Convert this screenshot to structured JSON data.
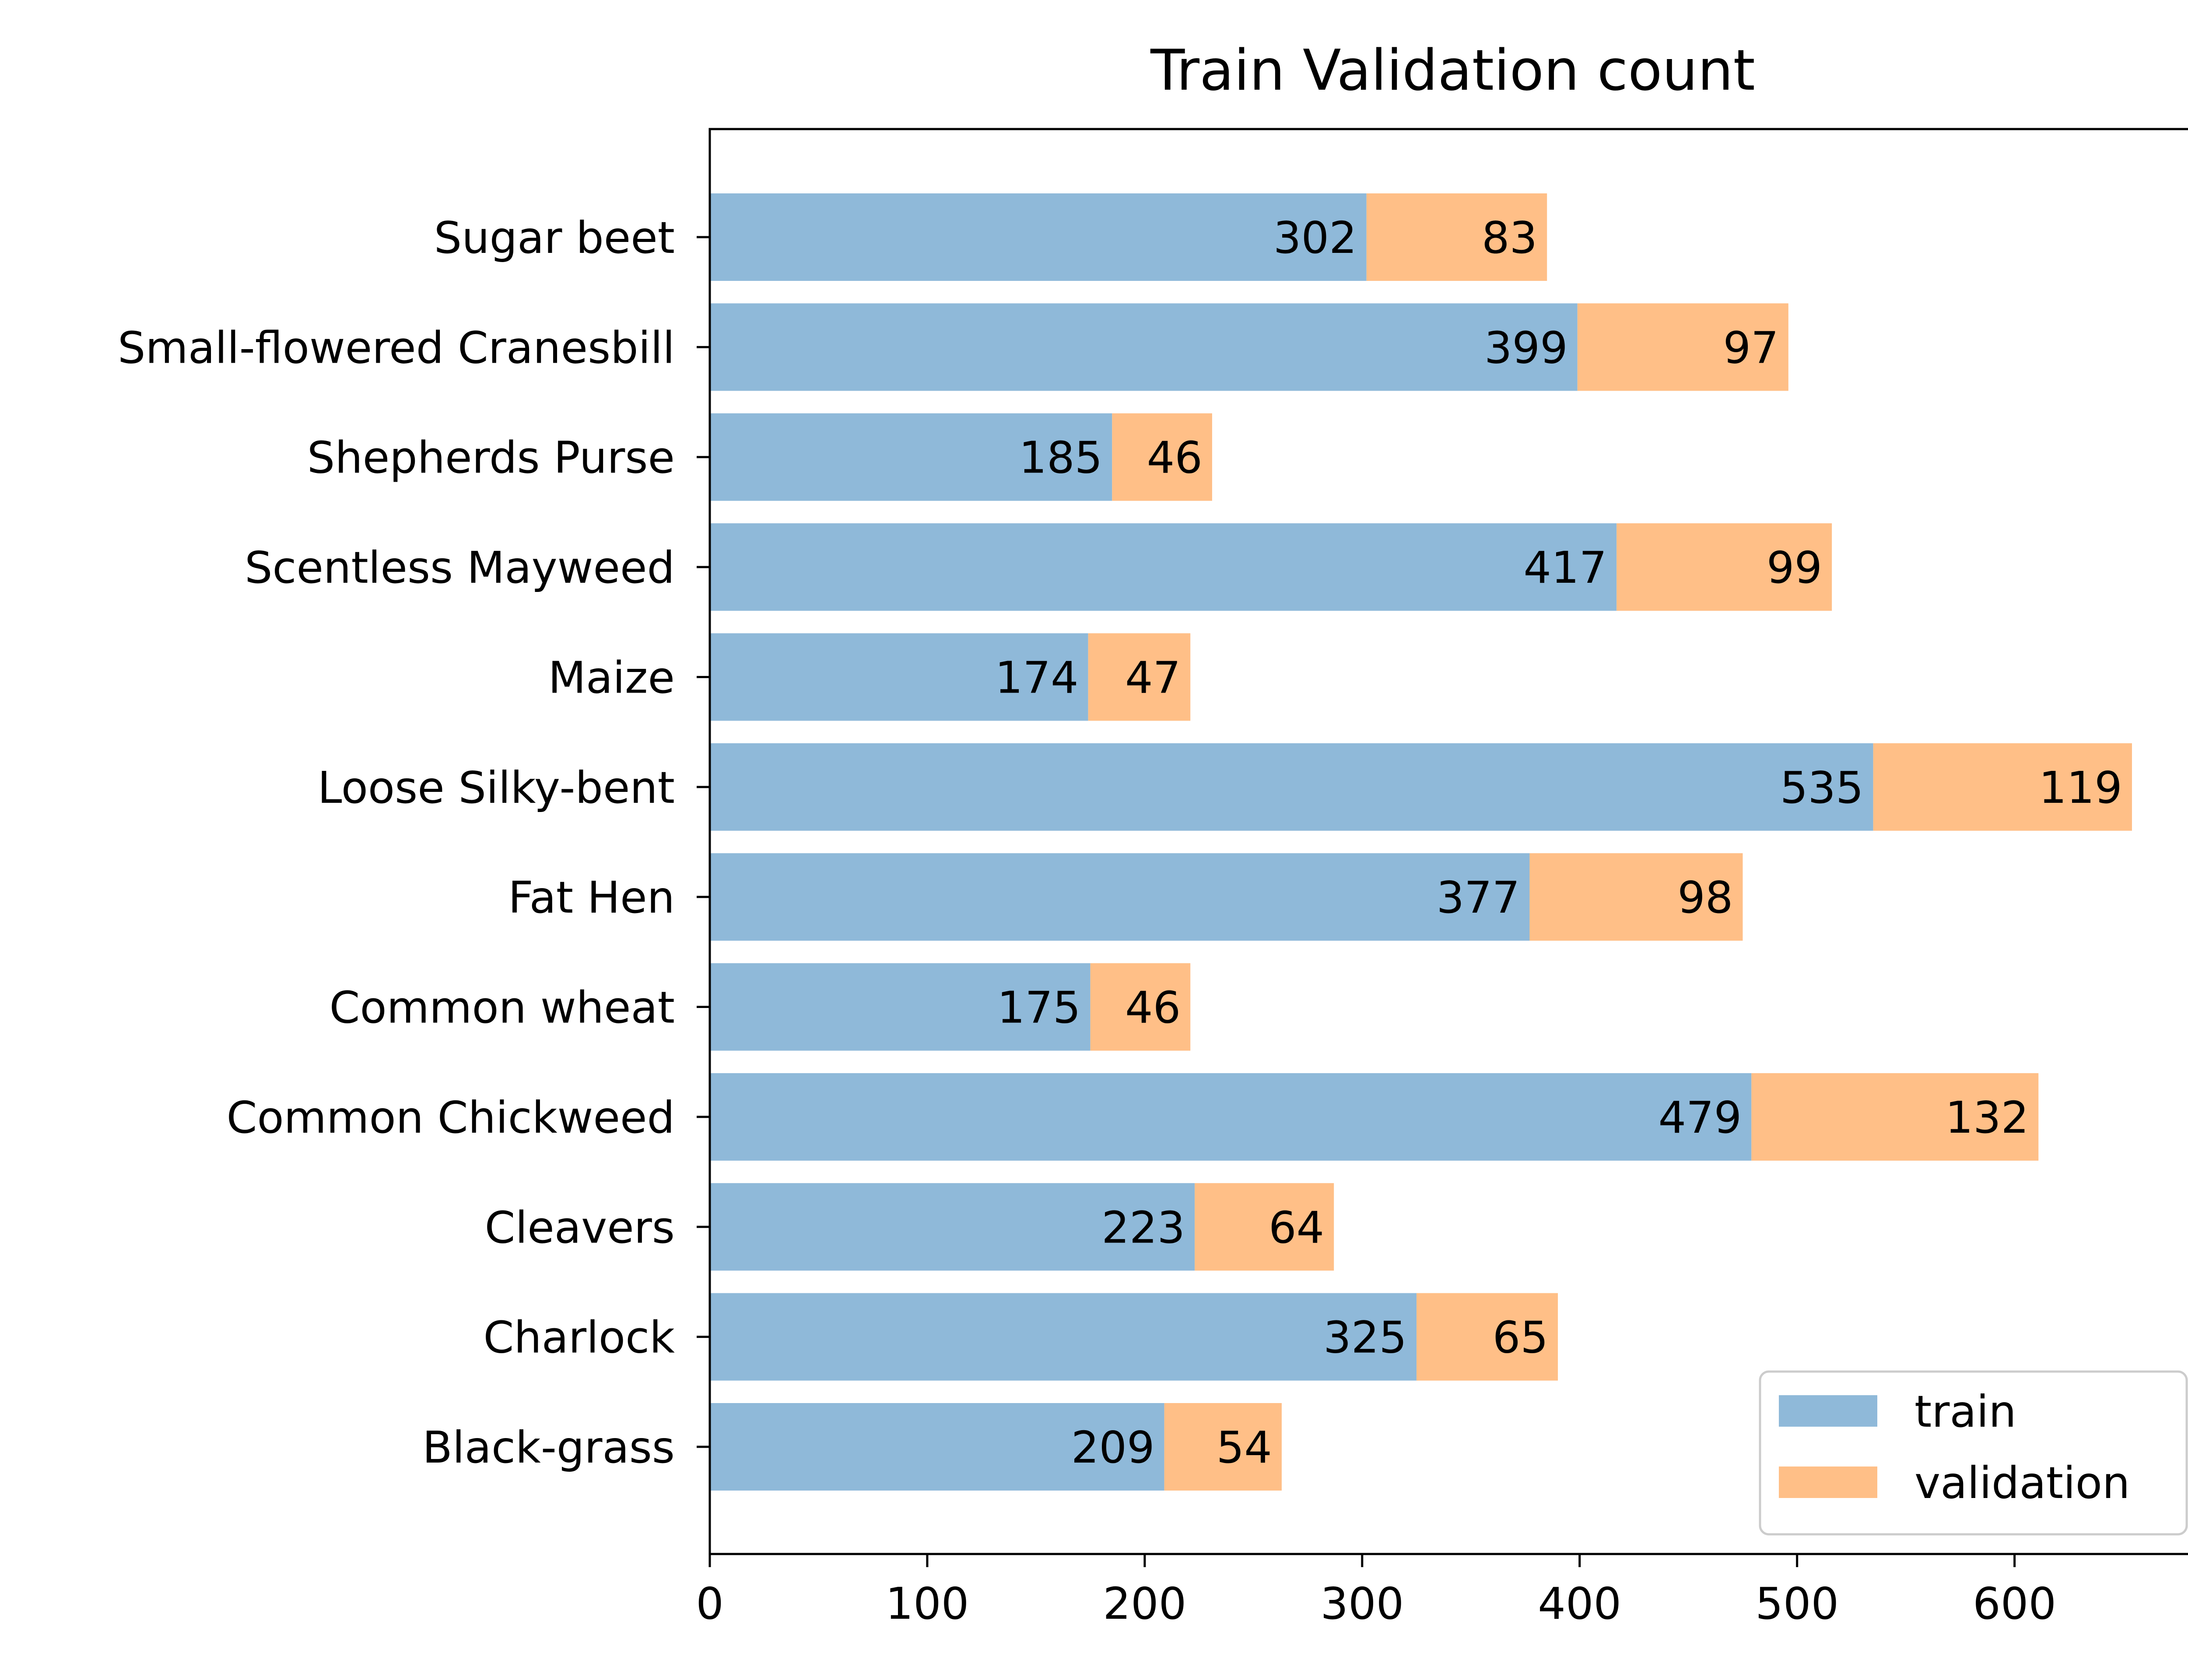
{
  "chart_data": {
    "type": "bar",
    "orientation": "horizontal",
    "stacked": true,
    "title": "Train Validation count",
    "xlabel": "",
    "ylabel": "",
    "categories": [
      "Black-grass",
      "Charlock",
      "Cleavers",
      "Common Chickweed",
      "Common wheat",
      "Fat Hen",
      "Loose Silky-bent",
      "Maize",
      "Scentless Mayweed",
      "Shepherds Purse",
      "Small-flowered Cranesbill",
      "Sugar beet"
    ],
    "series": [
      {
        "name": "train",
        "color": "#8fb9d9",
        "values": [
          209,
          325,
          223,
          479,
          175,
          377,
          535,
          174,
          417,
          185,
          399,
          302
        ]
      },
      {
        "name": "validation",
        "color": "#ffbf87",
        "values": [
          54,
          65,
          64,
          132,
          46,
          98,
          119,
          47,
          99,
          46,
          97,
          83
        ]
      }
    ],
    "xlim": [
      0,
      685
    ],
    "xticks": [
      0,
      100,
      200,
      300,
      400,
      500,
      600
    ],
    "grid": false,
    "legend_position": "bottom-right"
  }
}
